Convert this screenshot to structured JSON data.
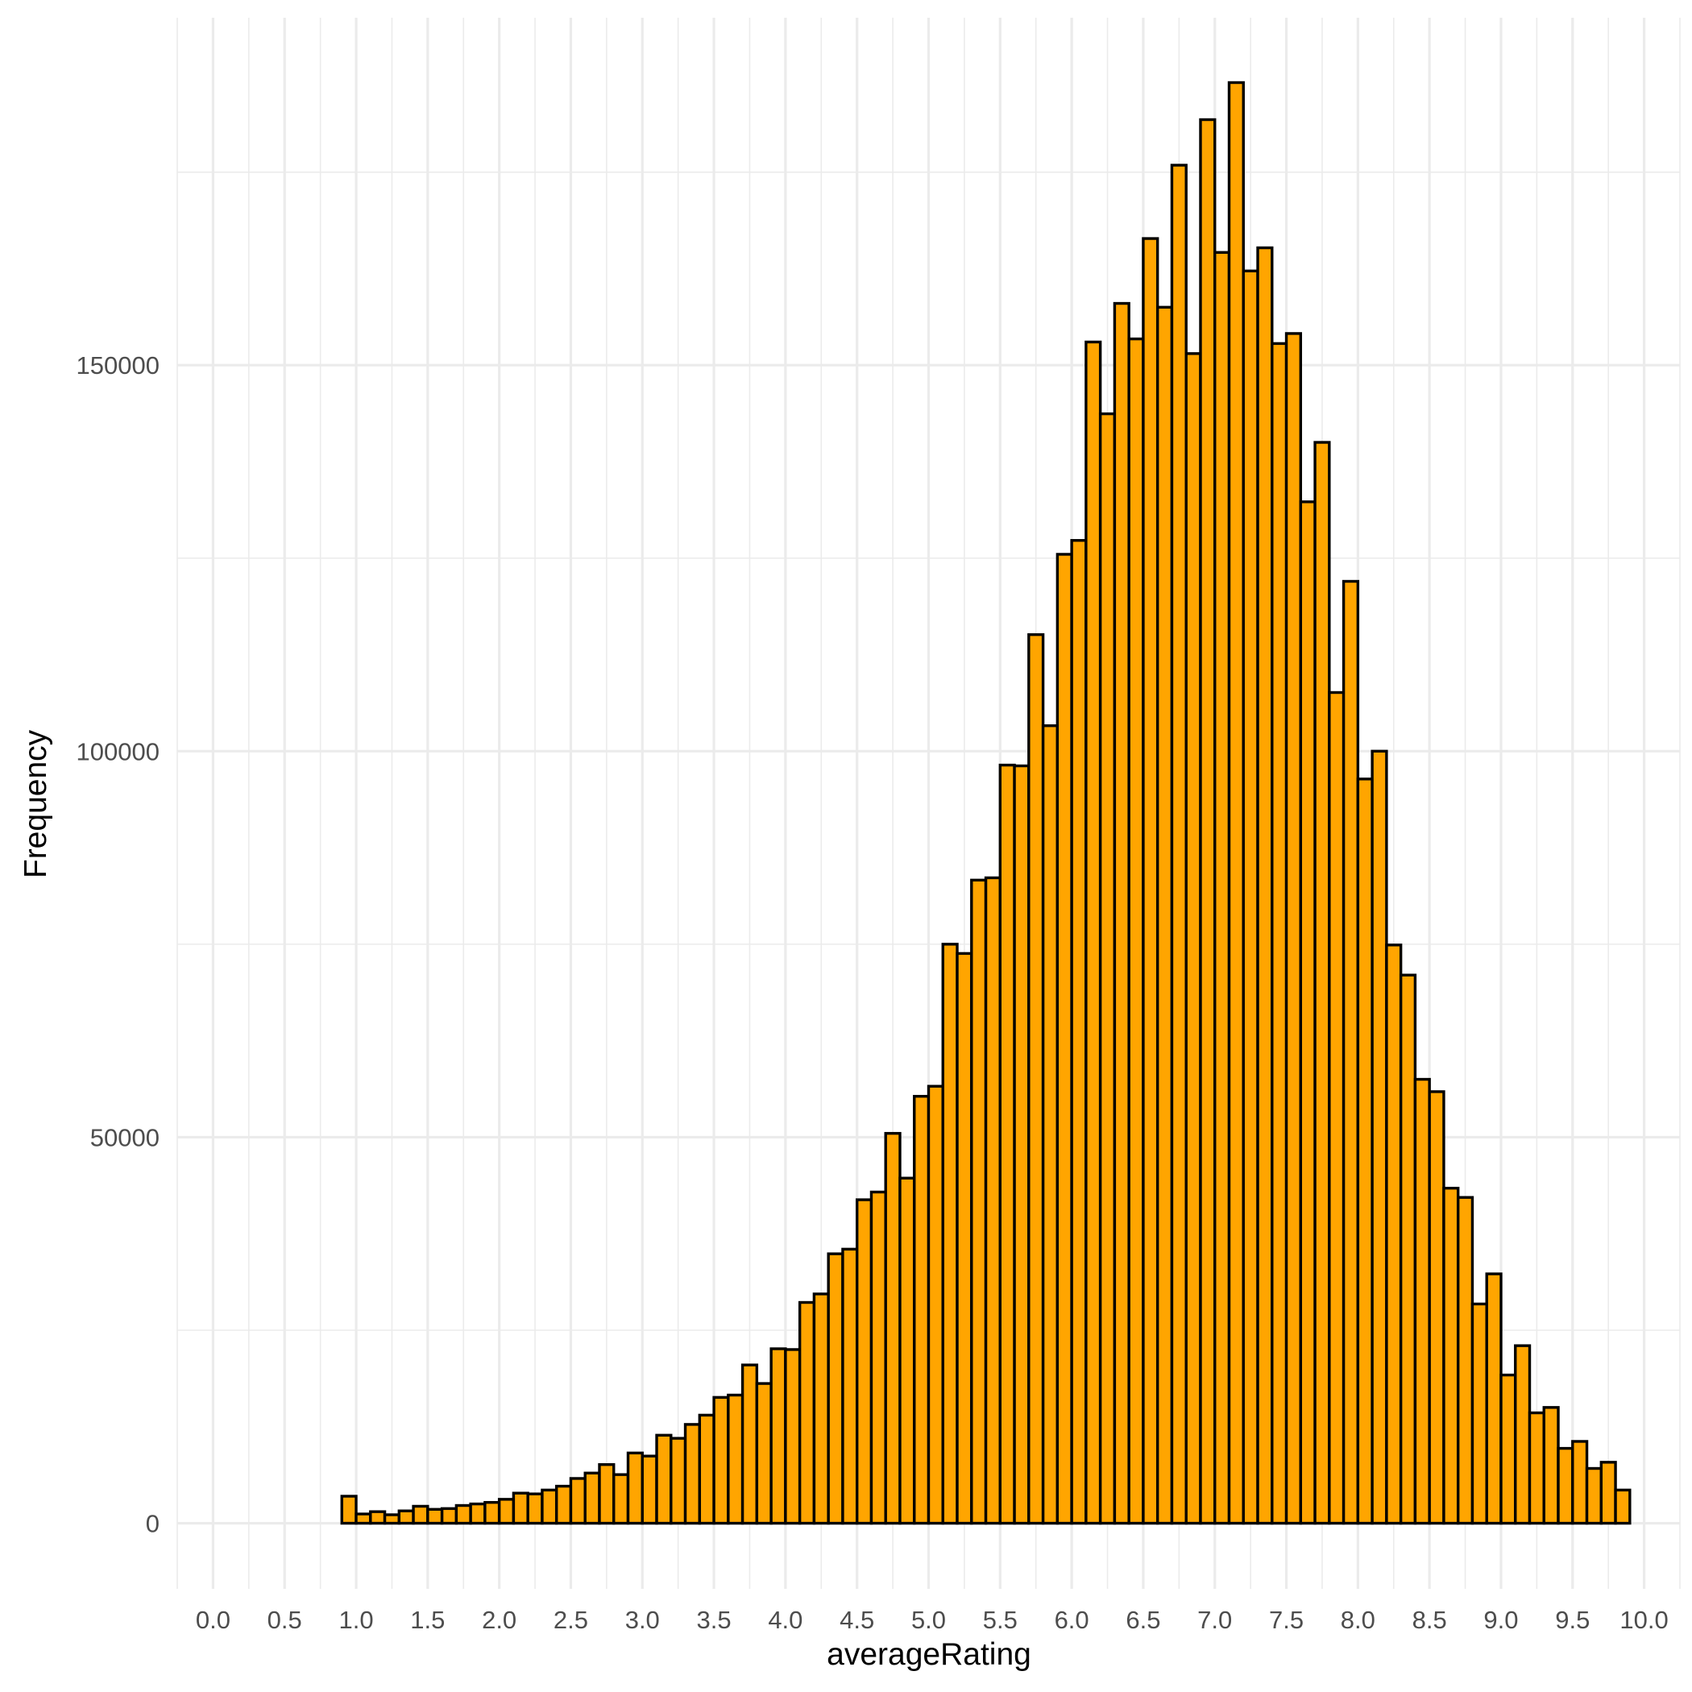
{
  "chart_data": {
    "type": "bar",
    "title": "",
    "xlabel": "averageRating",
    "ylabel": "Frequency",
    "xlim": [
      -0.25,
      10.25
    ],
    "ylim": [
      -8500,
      195000
    ],
    "x_ticks": [
      "0.0",
      "0.5",
      "1.0",
      "1.5",
      "2.0",
      "2.5",
      "3.0",
      "3.5",
      "4.0",
      "4.5",
      "5.0",
      "5.5",
      "6.0",
      "6.5",
      "7.0",
      "7.5",
      "8.0",
      "8.5",
      "9.0",
      "9.5",
      "10.0"
    ],
    "y_ticks": [
      "0",
      "50000",
      "100000",
      "150000"
    ],
    "grid": true,
    "bar_fill": "#FFA500",
    "bar_outline": "#000000",
    "bins": {
      "start": 0.05,
      "width": 0.1,
      "count": 99
    },
    "values": [
      0,
      0,
      0,
      0,
      0,
      0,
      0,
      0,
      0,
      3500,
      1200,
      1500,
      1100,
      1600,
      2200,
      1800,
      1900,
      2300,
      2500,
      2700,
      3100,
      3900,
      3800,
      4300,
      4800,
      5800,
      6500,
      7600,
      6300,
      9100,
      8700,
      11400,
      11000,
      12800,
      14000,
      16300,
      16600,
      20500,
      18100,
      22600,
      22500,
      28600,
      29700,
      34900,
      35500,
      41900,
      42900,
      50500,
      44700,
      55300,
      56600,
      75000,
      73800,
      83300,
      83600,
      98200,
      98100,
      115100,
      103300,
      125500,
      127300,
      153000,
      143700,
      158000,
      153400,
      166400,
      157500,
      175900,
      151500,
      181800,
      164600,
      186600,
      162200,
      165200,
      152800,
      154100,
      132300,
      140000,
      107600,
      122000,
      96400,
      100000,
      74900,
      71000,
      57500,
      55900,
      43400,
      42200,
      28400,
      32300,
      19200,
      23000,
      14300,
      15000,
      9700,
      10600,
      7100,
      7900,
      4300
    ]
  }
}
